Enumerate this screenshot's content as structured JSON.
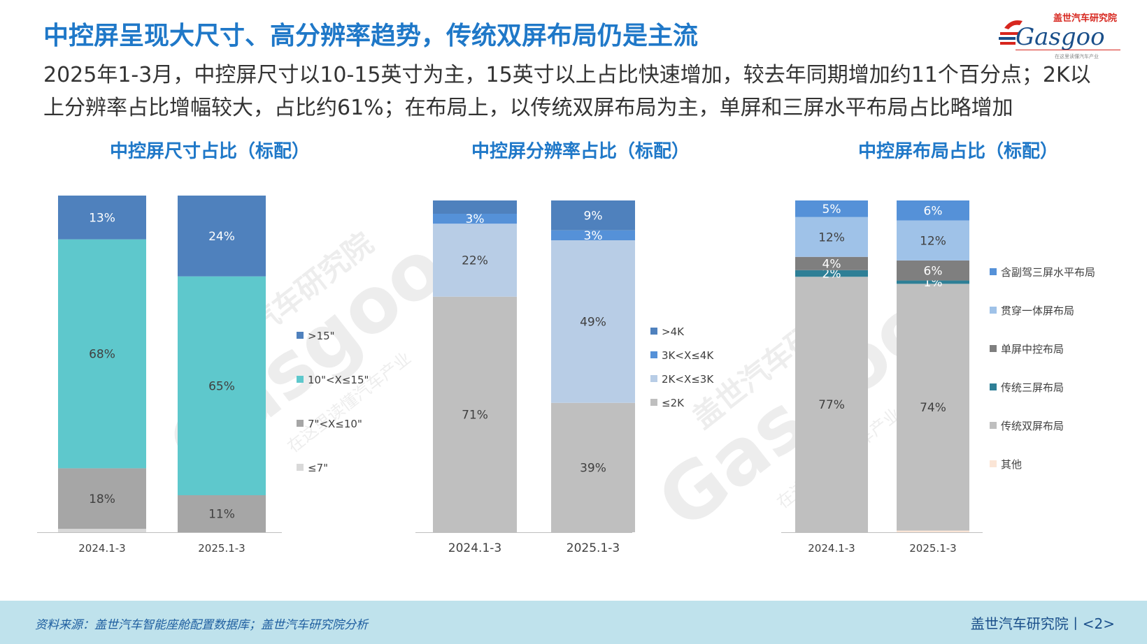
{
  "header": {
    "title": "中控屏呈现大尺寸、高分辨率趋势，传统双屏布局仍是主流",
    "subtitle": "2025年1-3月，中控屏尺寸以10-15英寸为主，15英寸以上占比快速增加，较去年同期增加约11个百分点；2K以上分辨率占比增幅较大，占比约61%；在布局上，以传统双屏布局为主，单屏和三屏水平布局占比略增加"
  },
  "logo": {
    "org_cn": "盖世汽车研究院",
    "brand": "Gasgoo",
    "slogan": "在这里读懂汽车产业"
  },
  "watermark": {
    "org_cn": "盖世汽车研究院",
    "brand": "Gasgoo",
    "slogan": "在这里读懂汽车产业"
  },
  "chart_data": [
    {
      "type": "bar",
      "stacked": true,
      "percent": true,
      "title": "中控屏尺寸占比（标配）",
      "categories": [
        "2024.1-3",
        "2025.1-3"
      ],
      "series": [
        {
          "name": "≤7\"",
          "color": "#d9d9d9",
          "values": [
            1,
            0
          ],
          "labels": [
            "",
            ""
          ]
        },
        {
          "name": "7\"<X≤10\"",
          "color": "#a6a6a6",
          "values": [
            18,
            11
          ],
          "labels": [
            "18%",
            "11%"
          ]
        },
        {
          "name": "10\"<X≤15\"",
          "color": "#5ec8cc",
          "values": [
            68,
            65
          ],
          "labels": [
            "68%",
            "65%"
          ]
        },
        {
          "name": ">15\"",
          "color": "#4f81bd",
          "values": [
            13,
            24
          ],
          "labels": [
            "13%",
            "24%"
          ]
        }
      ],
      "legend_position": "right"
    },
    {
      "type": "bar",
      "stacked": true,
      "percent": true,
      "title": "中控屏分辨率占比（标配）",
      "categories": [
        "2024.1-3",
        "2025.1-3"
      ],
      "series": [
        {
          "name": "≤2K",
          "color": "#bfbfbf",
          "values": [
            71,
            39
          ],
          "labels": [
            "71%",
            "39%"
          ]
        },
        {
          "name": "2K<X≤3K",
          "color": "#b8cde6",
          "values": [
            22,
            49
          ],
          "labels": [
            "22%",
            "49%"
          ]
        },
        {
          "name": "3K<X≤4K",
          "color": "#5591d8",
          "values": [
            3,
            3
          ],
          "labels": [
            "3%",
            "3%"
          ]
        },
        {
          "name": ">4K",
          "color": "#4f81bd",
          "values": [
            4,
            9
          ],
          "labels": [
            "",
            "9%"
          ]
        }
      ],
      "legend_position": "right"
    },
    {
      "type": "bar",
      "stacked": true,
      "percent": true,
      "title": "中控屏布局占比（标配）",
      "categories": [
        "2024.1-3",
        "2025.1-3"
      ],
      "series": [
        {
          "name": "其他",
          "color": "#fbe5d6",
          "values": [
            0,
            0.5
          ],
          "labels": [
            "",
            ""
          ]
        },
        {
          "name": "传统双屏布局",
          "color": "#bfbfbf",
          "values": [
            77,
            74
          ],
          "labels": [
            "77%",
            "74%"
          ]
        },
        {
          "name": "传统三屏布局",
          "color": "#2e7f96",
          "values": [
            2,
            1
          ],
          "labels": [
            "2%",
            "1%"
          ]
        },
        {
          "name": "单屏中控布局",
          "color": "#7f7f7f",
          "values": [
            4,
            6
          ],
          "labels": [
            "4%",
            "6%"
          ]
        },
        {
          "name": "贯穿一体屏布局",
          "color": "#9fc2e8",
          "values": [
            12,
            12
          ],
          "labels": [
            "12%",
            "12%"
          ]
        },
        {
          "name": "含副驾三屏水平布局",
          "color": "#5591d8",
          "values": [
            5,
            6
          ],
          "labels": [
            "5%",
            "6%"
          ]
        }
      ],
      "legend_position": "right"
    }
  ],
  "footer": {
    "source": "资料来源：盖世汽车智能座舱配置数据库；盖世汽车研究院分析",
    "org": "盖世汽车研究院",
    "separator": "丨",
    "page": "<2>"
  }
}
